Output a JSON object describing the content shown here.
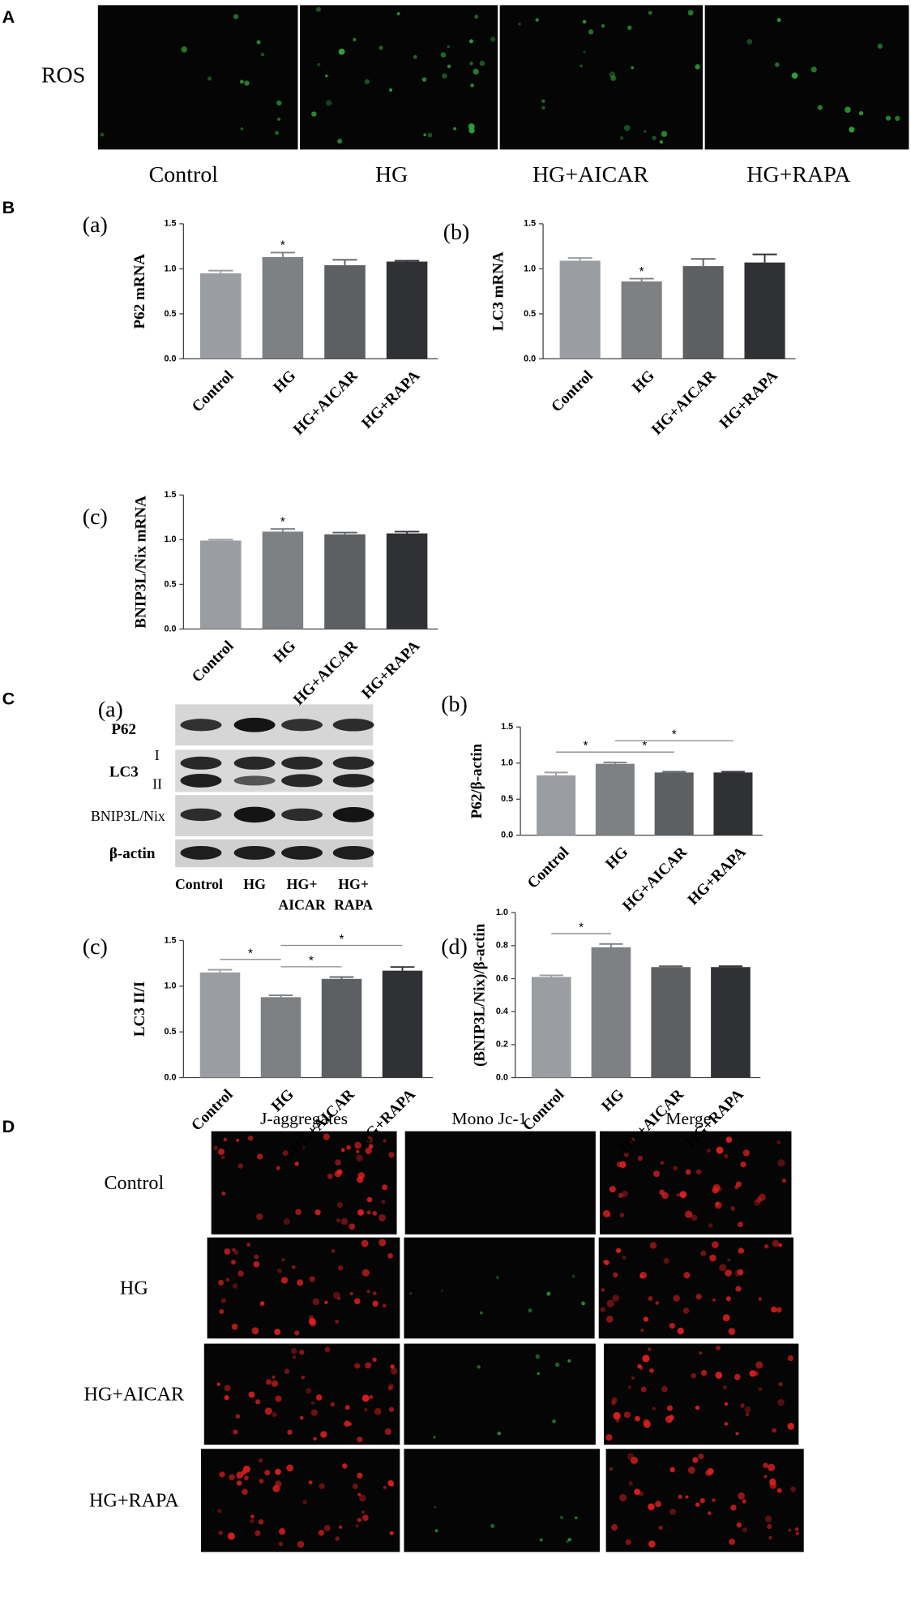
{
  "panel_a": {
    "letter": "A",
    "row_label": "ROS",
    "columns": [
      "Control",
      "HG",
      "HG+AICAR",
      "HG+RAPA"
    ]
  },
  "panel_b": {
    "letter": "B"
  },
  "panel_c": {
    "letter": "C",
    "blot_label": "(a)",
    "bands": [
      "P62",
      "LC3",
      "BNIP3L/Nix",
      "β-actin"
    ],
    "lc3_forms": [
      "I",
      "II"
    ],
    "lanes": [
      [
        "Control"
      ],
      [
        "HG"
      ],
      [
        "HG+",
        "AICAR"
      ],
      [
        "HG+",
        "RAPA"
      ]
    ]
  },
  "panel_d": {
    "letter": "D",
    "columns": [
      "J-aggregates",
      "Mono Jc-1",
      "Merge"
    ],
    "rows": [
      "Control",
      "HG",
      "HG+AICAR",
      "HG+RAPA"
    ]
  },
  "chart_data": [
    {
      "type": "bar",
      "panel": "(a)",
      "ylabel": "P62 mRNA",
      "categories": [
        "Control",
        "HG",
        "HG+AICAR",
        "HG+RAPA"
      ],
      "values": [
        0.95,
        1.13,
        1.04,
        1.08
      ],
      "errors": [
        0.03,
        0.05,
        0.06,
        0.01
      ],
      "colors": [
        "#9a9da1",
        "#7e8184",
        "#5d6063",
        "#2f3134"
      ],
      "ylim": [
        0,
        1.5
      ],
      "yticks": [
        {
          "value": 0,
          "label": "0.0"
        },
        0.5,
        {
          "value": 1,
          "label": "1.0"
        },
        1.5
      ],
      "annotations": [
        {
          "text": "*",
          "above": "HG"
        }
      ]
    },
    {
      "type": "bar",
      "panel": "(b)",
      "ylabel": "LC3 mRNA",
      "categories": [
        "Control",
        "HG",
        "HG+AICAR",
        "HG+RAPA"
      ],
      "values": [
        1.09,
        0.86,
        1.03,
        1.07
      ],
      "errors": [
        0.03,
        0.03,
        0.08,
        0.09
      ],
      "colors": [
        "#9a9da1",
        "#7e8184",
        "#5d6063",
        "#2f3134"
      ],
      "ylim": [
        0,
        1.5
      ],
      "yticks": [
        {
          "value": 0,
          "label": "0.0"
        },
        0.5,
        {
          "value": 1,
          "label": "1.0"
        },
        1.5
      ],
      "annotations": [
        {
          "text": "*",
          "above": "HG"
        }
      ]
    },
    {
      "type": "bar",
      "panel": "(c)",
      "ylabel": "BNIP3L/Nix mRNA",
      "categories": [
        "Control",
        "HG",
        "HG+AICAR",
        "HG+RAPA"
      ],
      "values": [
        0.99,
        1.09,
        1.06,
        1.07
      ],
      "errors": [
        0.01,
        0.03,
        0.02,
        0.02
      ],
      "colors": [
        "#9a9da1",
        "#7e8184",
        "#5d6063",
        "#2f3134"
      ],
      "ylim": [
        0,
        1.5
      ],
      "yticks": [
        {
          "value": 0,
          "label": "0.0"
        },
        0.5,
        {
          "value": 1,
          "label": "1.0"
        },
        1.5
      ],
      "annotations": [
        {
          "text": "*",
          "above": "HG"
        }
      ]
    },
    {
      "type": "bar",
      "panel": "(b)",
      "ylabel": "P62/β-actin",
      "categories": [
        "Control",
        "HG",
        "HG+AICAR",
        "HG+RAPA"
      ],
      "values": [
        0.83,
        0.99,
        0.87,
        0.87
      ],
      "errors": [
        0.04,
        0.02,
        0.01,
        0.01
      ],
      "colors": [
        "#9a9da1",
        "#7e8184",
        "#5d6063",
        "#2f3134"
      ],
      "ylim": [
        0,
        1.5
      ],
      "yticks": [
        {
          "value": 0,
          "label": "0.0"
        },
        0.5,
        {
          "value": 1,
          "label": "1.0"
        },
        1.5
      ],
      "annotations": [
        {
          "text": "*",
          "between": [
            "Control",
            "HG"
          ]
        },
        {
          "text": "*",
          "between": [
            "HG",
            "HG+AICAR"
          ]
        },
        {
          "text": "*",
          "between": [
            "HG",
            "HG+RAPA"
          ]
        }
      ]
    },
    {
      "type": "bar",
      "panel": "(c)",
      "ylabel": "LC3 II/I",
      "categories": [
        "Control",
        "HG",
        "HG+AICAR",
        "HG+RAPA"
      ],
      "values": [
        1.15,
        0.88,
        1.08,
        1.17
      ],
      "errors": [
        0.03,
        0.02,
        0.02,
        0.04
      ],
      "colors": [
        "#9a9da1",
        "#7e8184",
        "#5d6063",
        "#2f3134"
      ],
      "ylim": [
        0,
        1.5
      ],
      "yticks": [
        {
          "value": 0,
          "label": "0.0"
        },
        0.5,
        {
          "value": 1,
          "label": "1.0"
        },
        1.5
      ],
      "annotations": [
        {
          "text": "*",
          "between": [
            "Control",
            "HG"
          ]
        },
        {
          "text": "*",
          "between": [
            "HG",
            "HG+AICAR"
          ]
        },
        {
          "text": "*",
          "between": [
            "HG",
            "HG+RAPA"
          ]
        }
      ]
    },
    {
      "type": "bar",
      "panel": "(d)",
      "ylabel": "(BNIP3L/Nix)/β-actin",
      "categories": [
        "Control",
        "HG",
        "HG+AICAR",
        "HG+RAPA"
      ],
      "values": [
        0.61,
        0.79,
        0.67,
        0.67
      ],
      "errors": [
        0.01,
        0.02,
        0.005,
        0.005
      ],
      "colors": [
        "#9a9da1",
        "#7e8184",
        "#5d6063",
        "#2f3134"
      ],
      "ylim": [
        0,
        1
      ],
      "yticks": [
        {
          "value": 0,
          "label": "0.0"
        },
        0.2,
        0.4,
        0.6,
        0.8,
        {
          "value": 1,
          "label": "1.0"
        }
      ],
      "annotations": [
        {
          "text": "*",
          "between": [
            "Control",
            "HG"
          ]
        }
      ]
    }
  ]
}
